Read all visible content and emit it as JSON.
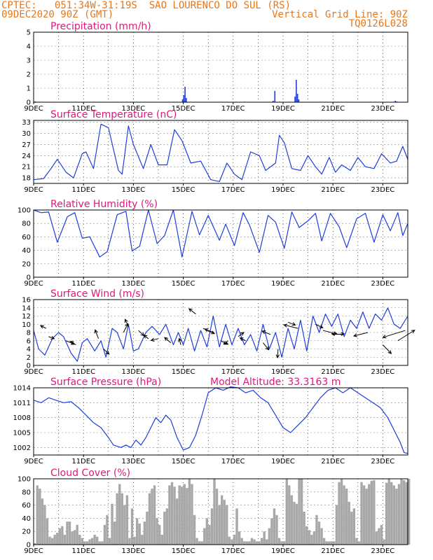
{
  "header": {
    "line1_left": "CPTEC:   051:34W-31:19S  SAO LOURENCO DO SUL (RS)",
    "line2_left": "09DEC2020 90Z (GMT)",
    "line2_right": "Vertical Grid Line: 90Z",
    "line3_right": "TQ0126L028"
  },
  "colors": {
    "header": "#e8761a",
    "title": "#e0187c",
    "line": "#1f3ddb",
    "cloud": "#a8a8a8",
    "wind_arrow": "#000000"
  },
  "chart_data": [
    {
      "id": "precip",
      "type": "bar",
      "title": "Precipitation (mm/h)",
      "ylim": [
        0,
        5
      ],
      "yticks": [
        0,
        1,
        2,
        3,
        4,
        5
      ],
      "x_labels": [
        "9DEC",
        "11DEC",
        "13DEC",
        "15DEC",
        "17DEC",
        "19DEC",
        "21DEC",
        "23DEC"
      ],
      "xlim_days": [
        9,
        24
      ],
      "grid": true,
      "x": [
        9.05,
        9.1,
        14.97,
        15.02,
        15.07,
        15.12,
        18.6,
        18.67,
        19.48,
        19.53,
        19.58,
        19.63,
        23.5,
        23.55
      ],
      "values": [
        0.05,
        0.03,
        0.2,
        0.5,
        1.1,
        0.3,
        0.1,
        0.8,
        0.4,
        1.6,
        0.6,
        0.2,
        0.1,
        0.05
      ]
    },
    {
      "id": "temp",
      "type": "line",
      "title": "Surface Temperature (nC)",
      "ylim": [
        16.5,
        33.5
      ],
      "yticks": [
        18,
        21,
        24,
        27,
        30,
        33
      ],
      "x_labels": [
        "9DEC",
        "11DEC",
        "13DEC",
        "15DEC",
        "17DEC",
        "19DEC",
        "21DEC",
        "23DEC"
      ],
      "xlim_days": [
        9,
        24
      ],
      "grid": true,
      "x": [
        9.0,
        9.4,
        9.7,
        9.95,
        10.3,
        10.6,
        10.95,
        11.1,
        11.4,
        11.7,
        12.0,
        12.4,
        12.55,
        12.8,
        13.0,
        13.4,
        13.7,
        14.0,
        14.35,
        14.65,
        14.95,
        15.3,
        15.7,
        16.1,
        16.45,
        16.75,
        17.05,
        17.35,
        17.7,
        18.05,
        18.3,
        18.7,
        18.85,
        19.05,
        19.35,
        19.7,
        20.0,
        20.3,
        20.55,
        20.85,
        21.1,
        21.35,
        21.7,
        22.0,
        22.3,
        22.65,
        22.95,
        23.3,
        23.55,
        23.8,
        24.0
      ],
      "values": [
        17.5,
        17.8,
        20.5,
        23.0,
        19.5,
        18.0,
        24.5,
        25.0,
        20.5,
        32.5,
        31.5,
        20.0,
        19.0,
        32.0,
        27.0,
        20.5,
        27.0,
        21.5,
        21.5,
        31.0,
        28.0,
        22.0,
        22.5,
        17.5,
        17.0,
        22.0,
        19.0,
        17.5,
        25.0,
        24.0,
        20.0,
        22.0,
        29.5,
        27.5,
        20.5,
        20.0,
        24.0,
        21.0,
        19.0,
        23.5,
        19.5,
        21.5,
        20.0,
        23.5,
        21.0,
        20.5,
        24.5,
        22.0,
        22.5,
        26.5,
        23.0
      ]
    },
    {
      "id": "rh",
      "type": "line",
      "title": "Relative Humidity (%)",
      "ylim": [
        0,
        100
      ],
      "yticks": [
        0,
        20,
        40,
        60,
        80,
        100
      ],
      "x_labels": [
        "9DEC",
        "11DEC",
        "13DEC",
        "15DEC",
        "17DEC",
        "19DEC",
        "21DEC",
        "23DEC"
      ],
      "xlim_days": [
        9,
        24
      ],
      "grid": true,
      "x": [
        9.0,
        9.3,
        9.6,
        9.95,
        10.35,
        10.65,
        10.95,
        11.25,
        11.65,
        11.95,
        12.35,
        12.7,
        12.95,
        13.25,
        13.6,
        13.95,
        14.25,
        14.6,
        14.95,
        15.35,
        15.65,
        16.0,
        16.45,
        16.7,
        17.05,
        17.4,
        17.65,
        18.05,
        18.4,
        18.7,
        19.05,
        19.35,
        19.65,
        20.0,
        20.3,
        20.55,
        20.9,
        21.25,
        21.55,
        21.95,
        22.3,
        22.65,
        23.0,
        23.3,
        23.6,
        23.8,
        24.0
      ],
      "values": [
        100,
        96,
        97,
        52,
        90,
        96,
        58,
        60,
        30,
        38,
        93,
        98,
        39,
        46,
        100,
        50,
        62,
        100,
        30,
        98,
        63,
        92,
        55,
        79,
        47,
        96,
        78,
        37,
        92,
        82,
        43,
        97,
        74,
        84,
        95,
        54,
        95,
        75,
        44,
        87,
        95,
        52,
        93,
        69,
        96,
        62,
        80
      ]
    },
    {
      "id": "wind",
      "type": "line",
      "title": "Surface Wind (m/s)",
      "ylim": [
        0,
        16
      ],
      "yticks": [
        0,
        2,
        4,
        6,
        8,
        10,
        12,
        14,
        16
      ],
      "x_labels": [
        "9DEC",
        "11DEC",
        "13DEC",
        "15DEC",
        "17DEC",
        "19DEC",
        "21DEC",
        "23DEC"
      ],
      "xlim_days": [
        9,
        24
      ],
      "grid": true,
      "x": [
        9.0,
        9.2,
        9.45,
        9.75,
        10.0,
        10.2,
        10.5,
        10.75,
        10.95,
        11.15,
        11.45,
        11.7,
        11.9,
        12.15,
        12.35,
        12.6,
        12.8,
        13.0,
        13.2,
        13.5,
        13.75,
        14.05,
        14.3,
        14.6,
        14.8,
        15.0,
        15.2,
        15.45,
        15.7,
        15.95,
        16.2,
        16.45,
        16.7,
        16.95,
        17.2,
        17.45,
        17.7,
        17.95,
        18.2,
        18.45,
        18.7,
        18.95,
        19.2,
        19.45,
        19.7,
        19.95,
        20.2,
        20.45,
        20.7,
        20.95,
        21.2,
        21.45,
        21.7,
        21.95,
        22.2,
        22.45,
        22.7,
        22.95,
        23.2,
        23.45,
        23.7,
        24.0
      ],
      "values": [
        8.5,
        4.0,
        2.5,
        6.5,
        8.0,
        7.0,
        3.0,
        1.0,
        5.5,
        6.5,
        3.5,
        6.0,
        2.0,
        9.0,
        8.0,
        4.0,
        10.0,
        3.5,
        4.0,
        8.0,
        9.5,
        7.5,
        10.0,
        5.0,
        8.0,
        5.0,
        9.0,
        3.5,
        8.5,
        4.5,
        12.0,
        4.5,
        10.0,
        5.0,
        9.0,
        5.0,
        7.5,
        3.5,
        10.0,
        4.0,
        8.0,
        2.0,
        9.0,
        4.0,
        11.0,
        3.5,
        12.0,
        8.0,
        12.5,
        9.5,
        12.5,
        7.0,
        11.0,
        9.0,
        13.0,
        9.0,
        12.5,
        11.0,
        14.0,
        10.0,
        9.0,
        12.0
      ]
    },
    {
      "id": "pressure",
      "type": "line",
      "title": "Surface Pressure (hPa)",
      "annotation": "Model Altitude: 33.3163 m",
      "ylim": [
        1000.5,
        1014
      ],
      "yticks": [
        1002,
        1005,
        1008,
        1011,
        1014
      ],
      "x_labels": [
        "9DEC",
        "11DEC",
        "13DEC",
        "15DEC",
        "17DEC",
        "19DEC",
        "21DEC",
        "23DEC"
      ],
      "xlim_days": [
        9,
        24
      ],
      "grid": true,
      "x": [
        9.0,
        9.3,
        9.6,
        9.9,
        10.2,
        10.5,
        10.8,
        11.1,
        11.4,
        11.7,
        12.0,
        12.2,
        12.5,
        12.7,
        12.9,
        13.1,
        13.3,
        13.5,
        13.7,
        13.9,
        14.1,
        14.3,
        14.5,
        14.75,
        15.0,
        15.25,
        15.5,
        15.75,
        16.0,
        16.3,
        16.6,
        16.9,
        17.2,
        17.5,
        17.8,
        18.1,
        18.4,
        18.7,
        19.0,
        19.3,
        19.6,
        19.9,
        20.2,
        20.5,
        20.8,
        21.1,
        21.4,
        21.7,
        22.0,
        22.3,
        22.6,
        22.9,
        23.2,
        23.5,
        23.7,
        23.85,
        24.0
      ],
      "values": [
        1011.5,
        1011.0,
        1012.0,
        1011.5,
        1011.0,
        1011.2,
        1010.0,
        1008.5,
        1007.0,
        1006.0,
        1004.0,
        1002.5,
        1002.0,
        1002.5,
        1002.0,
        1003.5,
        1002.5,
        1004.0,
        1006.0,
        1008.0,
        1007.0,
        1008.5,
        1007.5,
        1004.0,
        1001.5,
        1002.0,
        1004.5,
        1008.5,
        1013.0,
        1014.0,
        1013.5,
        1014.2,
        1014.0,
        1013.0,
        1013.5,
        1012.0,
        1011.0,
        1008.5,
        1006.0,
        1005.0,
        1006.5,
        1008.0,
        1010.0,
        1012.0,
        1013.5,
        1014.0,
        1013.0,
        1014.0,
        1013.0,
        1012.0,
        1011.0,
        1010.0,
        1008.0,
        1005.0,
        1003.0,
        1001.0,
        1000.8
      ]
    },
    {
      "id": "cloud",
      "type": "area",
      "title": "Cloud Cover (%)",
      "ylim": [
        0,
        100
      ],
      "yticks": [
        0,
        20,
        40,
        60,
        80,
        100
      ],
      "x_labels": [
        "9DEC",
        "11DEC",
        "13DEC",
        "15DEC",
        "17DEC",
        "19DEC",
        "21DEC",
        "23DEC"
      ],
      "xlim_days": [
        9,
        24
      ],
      "grid": true,
      "x": [
        9.0,
        9.1,
        9.2,
        9.3,
        9.4,
        9.5,
        9.6,
        9.7,
        9.8,
        9.9,
        10.0,
        10.1,
        10.2,
        10.3,
        10.4,
        10.5,
        10.6,
        10.7,
        10.8,
        10.9,
        11.0,
        11.1,
        11.2,
        11.3,
        11.4,
        11.5,
        11.6,
        11.7,
        11.8,
        11.9,
        12.0,
        12.1,
        12.2,
        12.3,
        12.4,
        12.5,
        12.6,
        12.7,
        12.8,
        12.9,
        13.0,
        13.1,
        13.2,
        13.3,
        13.4,
        13.5,
        13.6,
        13.7,
        13.8,
        13.9,
        14.0,
        14.1,
        14.2,
        14.3,
        14.4,
        14.5,
        14.6,
        14.7,
        14.8,
        14.9,
        15.0,
        15.1,
        15.2,
        15.3,
        15.4,
        15.5,
        15.6,
        15.7,
        15.8,
        15.9,
        16.0,
        16.1,
        16.2,
        16.3,
        16.4,
        16.5,
        16.6,
        16.7,
        16.8,
        16.9,
        17.0,
        17.1,
        17.2,
        17.3,
        17.4,
        17.5,
        17.6,
        17.7,
        17.8,
        17.9,
        18.0,
        18.1,
        18.2,
        18.3,
        18.4,
        18.5,
        18.6,
        18.7,
        18.8,
        18.9,
        19.0,
        19.1,
        19.2,
        19.3,
        19.4,
        19.5,
        19.6,
        19.7,
        19.8,
        19.9,
        20.0,
        20.1,
        20.2,
        20.3,
        20.4,
        20.5,
        20.6,
        20.7,
        20.8,
        20.9,
        21.0,
        21.1,
        21.2,
        21.3,
        21.4,
        21.5,
        21.6,
        21.7,
        21.8,
        21.9,
        22.0,
        22.1,
        22.2,
        22.3,
        22.4,
        22.5,
        22.6,
        22.7,
        22.8,
        22.9,
        23.0,
        23.1,
        23.2,
        23.3,
        23.4,
        23.5,
        23.6,
        23.7,
        23.8,
        23.9,
        24.0
      ],
      "values": [
        2,
        90,
        85,
        70,
        60,
        40,
        12,
        10,
        15,
        18,
        25,
        28,
        15,
        35,
        35,
        20,
        22,
        30,
        15,
        10,
        5,
        5,
        8,
        10,
        15,
        12,
        5,
        5,
        30,
        45,
        10,
        62,
        35,
        78,
        92,
        78,
        60,
        75,
        10,
        55,
        12,
        40,
        32,
        15,
        35,
        50,
        78,
        85,
        90,
        40,
        30,
        15,
        50,
        55,
        90,
        95,
        88,
        70,
        90,
        88,
        92,
        86,
        100,
        92,
        45,
        10,
        5,
        5,
        25,
        40,
        30,
        55,
        100,
        85,
        60,
        75,
        68,
        60,
        12,
        8,
        15,
        55,
        20,
        10,
        5,
        5,
        5,
        10,
        8,
        5,
        5,
        10,
        20,
        8,
        25,
        40,
        55,
        45,
        10,
        5,
        5,
        100,
        90,
        75,
        65,
        62,
        100,
        100,
        50,
        28,
        22,
        15,
        20,
        45,
        35,
        25,
        10,
        5,
        5,
        5,
        5,
        60,
        95,
        100,
        90,
        85,
        65,
        50,
        55,
        10,
        5,
        95,
        90,
        85,
        92,
        97,
        98,
        20,
        25,
        30,
        8,
        94,
        100,
        95,
        90,
        85,
        92,
        100,
        98,
        95,
        100
      ]
    }
  ],
  "wind_vectors": {
    "x": [
      9.5,
      9.6,
      10.3,
      10.7,
      11.6,
      11.8,
      12.6,
      12.8,
      13.2,
      13.6,
      14.0,
      14.5,
      14.9,
      15.5,
      15.8,
      16.2,
      16.5,
      16.8,
      17.2,
      17.5,
      18.2,
      18.5,
      18.8,
      19.2,
      19.6,
      20.3,
      20.6,
      21.0,
      21.4,
      22.4,
      23.0,
      23.6,
      23.9
    ],
    "y": [
      9.0,
      7.0,
      6.0,
      5.0,
      6.5,
      4.0,
      8.0,
      9.5,
      8.5,
      6.5,
      6.5,
      5.5,
      5.0,
      12.5,
      9.0,
      8.0,
      6.0,
      6.0,
      7.0,
      6.0,
      5.5,
      7.5,
      4.0,
      10.5,
      9.0,
      10.0,
      8.5,
      7.5,
      7.5,
      8.0,
      5.0,
      6.0,
      8.5
    ],
    "u": [
      -1.0,
      1.0,
      1.5,
      -1.0,
      -0.6,
      1.0,
      0.8,
      -0.6,
      1.0,
      -0.8,
      -1.3,
      -1.1,
      -0.3,
      -1.2,
      2.0,
      -1.5,
      1.3,
      -0.8,
      1.0,
      -1.0,
      1.0,
      -1.5,
      -0.1,
      1.3,
      -2.5,
      1.3,
      2.5,
      2.0,
      -2.0,
      -2.5,
      1.5,
      3.0,
      -4.0
    ],
    "v": [
      0.8,
      -0.6,
      -1.0,
      1.0,
      2.5,
      -1.5,
      2.5,
      2.0,
      -1.5,
      1.0,
      -0.5,
      1.5,
      1.8,
      1.5,
      -1.5,
      1.0,
      -1.0,
      -1.0,
      1.2,
      0.8,
      -2.0,
      1.0,
      -2.5,
      -0.8,
      1.0,
      -1.0,
      -1.0,
      0.2,
      0.2,
      -1.0,
      -2.5,
      3.0,
      -2.0
    ]
  }
}
